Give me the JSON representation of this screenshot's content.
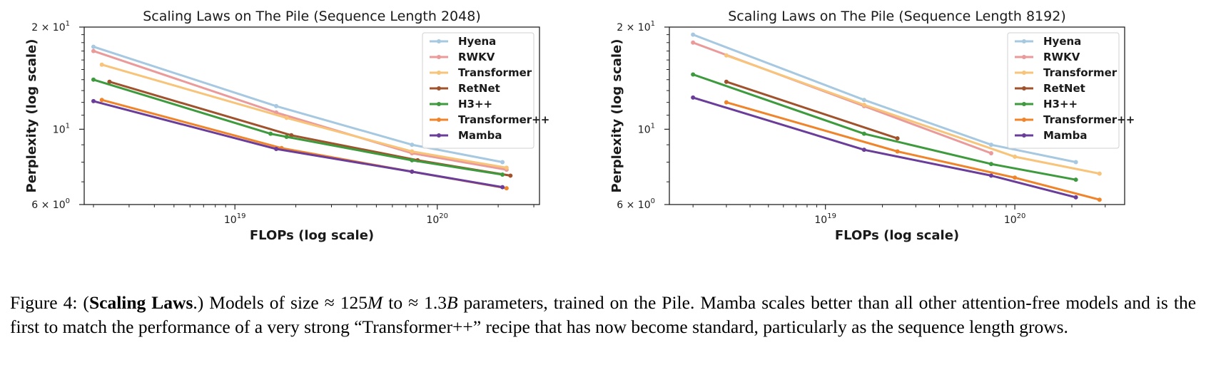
{
  "chart_data": [
    {
      "type": "line",
      "title": "Scaling Laws on The Pile (Sequence Length 2048)",
      "xlabel": "FLOPs (log scale)",
      "ylabel": "Perplexity (log scale)",
      "xscale": "log",
      "yscale": "log",
      "xlim": [
        1.8e+18,
        3.2e+20
      ],
      "ylim": [
        6,
        20
      ],
      "xticks": [
        {
          "value": 1e+19,
          "base": "10",
          "exp": "19"
        },
        {
          "value": 1e+20,
          "base": "10",
          "exp": "20"
        }
      ],
      "yticks": [
        {
          "value": 6,
          "label": "6 × 10",
          "exp": "0"
        },
        {
          "value": 10,
          "label": "10",
          "exp": "1"
        },
        {
          "value": 20,
          "label": "2 × 10",
          "exp": "1"
        }
      ],
      "legend_position": "top-right",
      "grid": false,
      "series": [
        {
          "name": "Hyena",
          "color": "#a6c8e0",
          "x": [
            2e+18,
            1.6e+19,
            7.5e+19,
            2.1e+20
          ],
          "y": [
            17.5,
            11.7,
            9.0,
            8.0
          ]
        },
        {
          "name": "RWKV",
          "color": "#eb9a9a",
          "x": [
            2e+18,
            1.6e+19,
            7.5e+19,
            2.2e+20
          ],
          "y": [
            17.0,
            11.2,
            8.5,
            7.6
          ]
        },
        {
          "name": "Transformer",
          "color": "#f7c47a",
          "x": [
            2.2e+18,
            1.8e+19,
            7.5e+19,
            2.2e+20
          ],
          "y": [
            15.5,
            10.8,
            8.6,
            7.7
          ]
        },
        {
          "name": "RetNet",
          "color": "#a0522d",
          "x": [
            2.4e+18,
            1.9e+19,
            8e+19,
            2.3e+20
          ],
          "y": [
            13.8,
            9.6,
            8.1,
            7.3
          ]
        },
        {
          "name": "H3++",
          "color": "#3d9a3d",
          "x": [
            2e+18,
            1.5e+19,
            1.8e+19,
            7.5e+19,
            2.1e+20
          ],
          "y": [
            14.0,
            9.7,
            9.5,
            8.1,
            7.35
          ]
        },
        {
          "name": "Transformer++",
          "color": "#f0842a",
          "x": [
            2.2e+18,
            1.7e+19,
            7.5e+19,
            2.2e+20
          ],
          "y": [
            12.2,
            8.8,
            7.5,
            6.7
          ]
        },
        {
          "name": "Mamba",
          "color": "#6a3d9a",
          "x": [
            2e+18,
            1.6e+19,
            7.5e+19,
            2.1e+20
          ],
          "y": [
            12.1,
            8.75,
            7.5,
            6.75
          ]
        }
      ]
    },
    {
      "type": "line",
      "title": "Scaling Laws on The Pile (Sequence Length 8192)",
      "xlabel": "FLOPs (log scale)",
      "ylabel": "Perplexity (log scale)",
      "xscale": "log",
      "yscale": "log",
      "xlim": [
        1.5e+18,
        3.8e+20
      ],
      "ylim": [
        6,
        20
      ],
      "xticks": [
        {
          "value": 1e+19,
          "base": "10",
          "exp": "19"
        },
        {
          "value": 1e+20,
          "base": "10",
          "exp": "20"
        }
      ],
      "yticks": [
        {
          "value": 6,
          "label": "6 × 10",
          "exp": "0"
        },
        {
          "value": 10,
          "label": "10",
          "exp": "1"
        },
        {
          "value": 20,
          "label": "2 × 10",
          "exp": "1"
        }
      ],
      "legend_position": "top-right",
      "grid": false,
      "series": [
        {
          "name": "Hyena",
          "color": "#a6c8e0",
          "x": [
            2e+18,
            1.6e+19,
            7.5e+19,
            2.1e+20
          ],
          "y": [
            19.0,
            12.2,
            9.0,
            8.0
          ]
        },
        {
          "name": "RWKV",
          "color": "#eb9a9a",
          "x": [
            2e+18,
            1.6e+19,
            7.5e+19
          ],
          "y": [
            18.0,
            11.7,
            8.5
          ]
        },
        {
          "name": "Transformer",
          "color": "#f7c47a",
          "x": [
            3e+18,
            1.6e+19,
            1e+20,
            2.8e+20
          ],
          "y": [
            16.5,
            11.8,
            8.3,
            7.4
          ]
        },
        {
          "name": "RetNet",
          "color": "#a0522d",
          "x": [
            3e+18,
            2.4e+19
          ],
          "y": [
            13.8,
            9.4
          ]
        },
        {
          "name": "H3++",
          "color": "#3d9a3d",
          "x": [
            2e+18,
            1.6e+19,
            7.5e+19,
            2.1e+20
          ],
          "y": [
            14.5,
            9.7,
            7.9,
            7.1
          ]
        },
        {
          "name": "Transformer++",
          "color": "#f0842a",
          "x": [
            3e+18,
            2.4e+19,
            1e+20,
            2.8e+20
          ],
          "y": [
            12.0,
            8.6,
            7.2,
            6.2
          ]
        },
        {
          "name": "Mamba",
          "color": "#6a3d9a",
          "x": [
            2e+18,
            1.6e+19,
            7.5e+19,
            2.1e+20
          ],
          "y": [
            12.4,
            8.7,
            7.3,
            6.3
          ]
        }
      ]
    }
  ],
  "caption": {
    "prefix": "Figure 4: (",
    "bold": "Scaling Laws",
    "t1": ".)  Models of size ≈ 125",
    "i1": "M",
    "t2": " to ≈ 1.3",
    "i2": "B",
    "t3": " parameters, trained on the Pile.  Mamba scales better than all other attention-free models and is the first to match the performance of a very strong “Transformer++” recipe that has now become standard, particularly as the sequence length grows."
  }
}
